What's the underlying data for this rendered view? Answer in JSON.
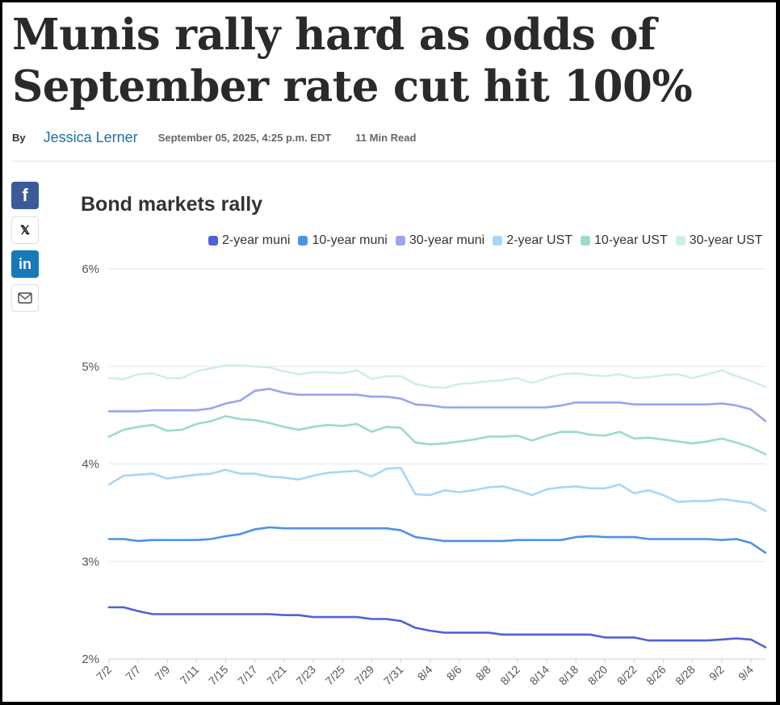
{
  "article": {
    "headline_line1": "Munis rally hard as odds of",
    "headline_line2": "September rate cut hit 100%",
    "by_label": "By",
    "author": "Jessica Lerner",
    "date": "September 05, 2025, 4:25 p.m. EDT",
    "read_time": "11 Min Read"
  },
  "share": {
    "facebook_glyph": "f",
    "x_glyph": "𝕏",
    "linkedin_glyph": "in"
  },
  "icons": [
    "facebook-icon",
    "x-icon",
    "linkedin-icon",
    "mail-icon"
  ],
  "chart_data": {
    "type": "line",
    "title": "Bond markets rally",
    "xlabel": "",
    "ylabel": "",
    "ylim": [
      2,
      6
    ],
    "yticks": [
      "2%",
      "3%",
      "4%",
      "5%",
      "6%"
    ],
    "grid": true,
    "legend_position": "top",
    "categories": [
      "7/2",
      "7/3",
      "7/7",
      "7/8",
      "7/9",
      "7/10",
      "7/11",
      "7/14",
      "7/15",
      "7/16",
      "7/17",
      "7/18",
      "7/21",
      "7/22",
      "7/23",
      "7/24",
      "7/25",
      "7/28",
      "7/29",
      "7/30",
      "7/31",
      "8/1",
      "8/4",
      "8/5",
      "8/6",
      "8/7",
      "8/8",
      "8/11",
      "8/12",
      "8/13",
      "8/14",
      "8/15",
      "8/18",
      "8/19",
      "8/20",
      "8/21",
      "8/22",
      "8/25",
      "8/26",
      "8/27",
      "8/28",
      "8/29",
      "9/2",
      "9/3",
      "9/4",
      "9/5"
    ],
    "x_tick_labels": [
      "7/2",
      "7/7",
      "7/9",
      "7/11",
      "7/15",
      "7/17",
      "7/21",
      "7/23",
      "7/25",
      "7/29",
      "7/31",
      "8/4",
      "8/6",
      "8/8",
      "8/12",
      "8/14",
      "8/18",
      "8/20",
      "8/22",
      "8/26",
      "8/28",
      "9/2",
      "9/4"
    ],
    "series": [
      {
        "name": "2-year muni",
        "color": "#4f62d8",
        "values": [
          2.53,
          2.53,
          2.49,
          2.46,
          2.46,
          2.46,
          2.46,
          2.46,
          2.46,
          2.46,
          2.46,
          2.46,
          2.45,
          2.45,
          2.43,
          2.43,
          2.43,
          2.43,
          2.41,
          2.41,
          2.39,
          2.32,
          2.29,
          2.27,
          2.27,
          2.27,
          2.27,
          2.25,
          2.25,
          2.25,
          2.25,
          2.25,
          2.25,
          2.25,
          2.22,
          2.22,
          2.22,
          2.19,
          2.19,
          2.19,
          2.19,
          2.19,
          2.2,
          2.21,
          2.2,
          2.12
        ]
      },
      {
        "name": "10-year muni",
        "color": "#4d93e3",
        "values": [
          3.23,
          3.23,
          3.21,
          3.22,
          3.22,
          3.22,
          3.22,
          3.23,
          3.26,
          3.28,
          3.33,
          3.35,
          3.34,
          3.34,
          3.34,
          3.34,
          3.34,
          3.34,
          3.34,
          3.34,
          3.32,
          3.25,
          3.23,
          3.21,
          3.21,
          3.21,
          3.21,
          3.21,
          3.22,
          3.22,
          3.22,
          3.22,
          3.25,
          3.26,
          3.25,
          3.25,
          3.25,
          3.23,
          3.23,
          3.23,
          3.23,
          3.23,
          3.22,
          3.23,
          3.19,
          3.09
        ]
      },
      {
        "name": "30-year muni",
        "color": "#9ba4ec",
        "values": [
          4.54,
          4.54,
          4.54,
          4.55,
          4.55,
          4.55,
          4.55,
          4.57,
          4.62,
          4.65,
          4.75,
          4.77,
          4.73,
          4.71,
          4.71,
          4.71,
          4.71,
          4.71,
          4.69,
          4.69,
          4.67,
          4.61,
          4.6,
          4.58,
          4.58,
          4.58,
          4.58,
          4.58,
          4.58,
          4.58,
          4.58,
          4.6,
          4.63,
          4.63,
          4.63,
          4.63,
          4.61,
          4.61,
          4.61,
          4.61,
          4.61,
          4.61,
          4.62,
          4.6,
          4.56,
          4.44
        ]
      },
      {
        "name": "2-year UST",
        "color": "#a8d6f6",
        "values": [
          3.79,
          3.88,
          3.89,
          3.9,
          3.85,
          3.87,
          3.89,
          3.9,
          3.94,
          3.9,
          3.9,
          3.87,
          3.86,
          3.84,
          3.88,
          3.91,
          3.92,
          3.93,
          3.87,
          3.95,
          3.96,
          3.69,
          3.68,
          3.73,
          3.71,
          3.73,
          3.76,
          3.77,
          3.73,
          3.68,
          3.74,
          3.76,
          3.77,
          3.75,
          3.75,
          3.79,
          3.7,
          3.73,
          3.68,
          3.61,
          3.62,
          3.62,
          3.64,
          3.62,
          3.6,
          3.52
        ]
      },
      {
        "name": "10-year UST",
        "color": "#9adcc7",
        "values": [
          4.28,
          4.35,
          4.38,
          4.4,
          4.34,
          4.35,
          4.41,
          4.44,
          4.49,
          4.46,
          4.45,
          4.42,
          4.38,
          4.35,
          4.38,
          4.4,
          4.39,
          4.41,
          4.33,
          4.38,
          4.37,
          4.22,
          4.2,
          4.21,
          4.23,
          4.25,
          4.28,
          4.28,
          4.29,
          4.24,
          4.29,
          4.33,
          4.33,
          4.3,
          4.29,
          4.33,
          4.26,
          4.27,
          4.25,
          4.23,
          4.21,
          4.23,
          4.26,
          4.22,
          4.17,
          4.1
        ]
      },
      {
        "name": "30-year UST",
        "color": "#cdf0e4",
        "values": [
          4.88,
          4.87,
          4.92,
          4.93,
          4.88,
          4.88,
          4.95,
          4.98,
          5.01,
          5.01,
          5.0,
          4.99,
          4.95,
          4.92,
          4.94,
          4.94,
          4.93,
          4.96,
          4.87,
          4.9,
          4.9,
          4.82,
          4.79,
          4.78,
          4.82,
          4.83,
          4.85,
          4.86,
          4.88,
          4.83,
          4.88,
          4.92,
          4.93,
          4.91,
          4.9,
          4.92,
          4.88,
          4.89,
          4.91,
          4.92,
          4.88,
          4.92,
          4.96,
          4.9,
          4.85,
          4.79
        ]
      }
    ]
  }
}
